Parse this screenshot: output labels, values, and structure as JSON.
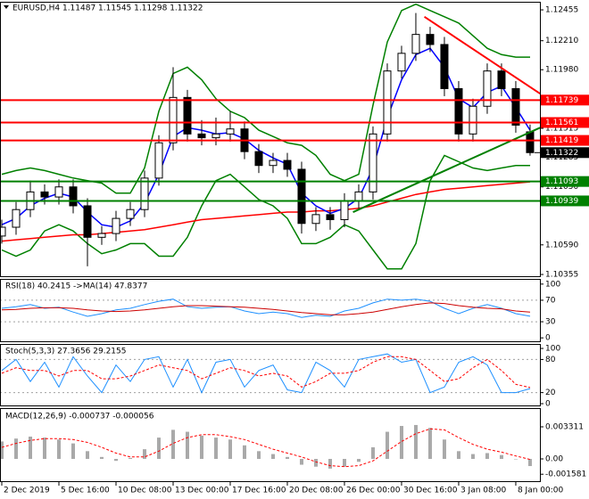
{
  "chart_data": [
    {
      "type": "candlestick",
      "title": "EURUSD,H4  1.11487 1.11545 1.11298 1.11322",
      "open": [
        1.1066,
        1.1073,
        1.1087,
        1.1101,
        1.1097,
        1.1105,
        1.109,
        1.1065,
        1.1068,
        1.108,
        1.1087,
        1.1112,
        1.114,
        1.1176,
        1.1147,
        1.1144,
        1.1147,
        1.1151,
        1.1133,
        1.1122,
        1.1126,
        1.1119,
        1.1076,
        1.1083,
        1.1079,
        1.1094,
        1.1101,
        1.1147,
        1.1197,
        1.1211,
        1.1226,
        1.1218,
        1.1183,
        1.1147,
        1.1169,
        1.1197,
        1.1183,
        1.11487
      ],
      "high": [
        1.1079,
        1.1093,
        1.111,
        1.1107,
        1.1111,
        1.1111,
        1.1096,
        1.1074,
        1.1086,
        1.1093,
        1.1118,
        1.1146,
        1.12,
        1.1182,
        1.1158,
        1.116,
        1.1165,
        1.1157,
        1.1139,
        1.1132,
        1.1132,
        1.1125,
        1.1089,
        1.1089,
        1.11,
        1.1107,
        1.1153,
        1.1203,
        1.1217,
        1.1243,
        1.1232,
        1.1224,
        1.1189,
        1.1175,
        1.1203,
        1.1203,
        1.1189,
        1.11545
      ],
      "low": [
        1.106,
        1.1067,
        1.1081,
        1.1091,
        1.1091,
        1.1084,
        1.1042,
        1.1059,
        1.1062,
        1.1074,
        1.1081,
        1.1106,
        1.1134,
        1.1141,
        1.1138,
        1.1138,
        1.1141,
        1.1127,
        1.1116,
        1.1116,
        1.1113,
        1.1068,
        1.107,
        1.1071,
        1.1073,
        1.1088,
        1.1095,
        1.1141,
        1.1191,
        1.1205,
        1.1212,
        1.1177,
        1.1141,
        1.1141,
        1.1163,
        1.1177,
        1.1148,
        1.11298
      ],
      "close": [
        1.1073,
        1.1087,
        1.1101,
        1.1097,
        1.1105,
        1.109,
        1.1065,
        1.1068,
        1.108,
        1.1087,
        1.1112,
        1.114,
        1.1176,
        1.1147,
        1.1144,
        1.1147,
        1.1151,
        1.1133,
        1.1122,
        1.1126,
        1.1119,
        1.1076,
        1.1083,
        1.1079,
        1.1094,
        1.1101,
        1.1147,
        1.1197,
        1.1211,
        1.1226,
        1.1218,
        1.1183,
        1.1147,
        1.1169,
        1.1197,
        1.1183,
        1.1154,
        1.11322
      ],
      "lines": [
        {
          "color": "#008000",
          "values": [
            1.1115,
            1.1118,
            1.112,
            1.1118,
            1.1115,
            1.1112,
            1.111,
            1.1108,
            1.11,
            1.11,
            1.112,
            1.1165,
            1.1195,
            1.12,
            1.119,
            1.1175,
            1.1165,
            1.116,
            1.115,
            1.1145,
            1.114,
            1.1138,
            1.113,
            1.1115,
            1.111,
            1.1115,
            1.117,
            1.122,
            1.1245,
            1.125,
            1.1245,
            1.124,
            1.1235,
            1.1225,
            1.1215,
            1.121,
            1.1208,
            1.1208
          ]
        },
        {
          "color": "#008000",
          "values": [
            1.1055,
            1.105,
            1.1055,
            1.107,
            1.1075,
            1.107,
            1.106,
            1.1052,
            1.1055,
            1.106,
            1.106,
            1.105,
            1.105,
            1.1065,
            1.109,
            1.111,
            1.1115,
            1.1105,
            1.1095,
            1.109,
            1.108,
            1.106,
            1.106,
            1.1065,
            1.1075,
            1.107,
            1.1055,
            1.104,
            1.104,
            1.106,
            1.111,
            1.113,
            1.1125,
            1.112,
            1.1118,
            1.112,
            1.1122,
            1.1122
          ]
        },
        {
          "color": "#ff0000",
          "values": [
            1.1062,
            1.1063,
            1.1064,
            1.1065,
            1.1066,
            1.1067,
            1.1067,
            1.1068,
            1.1069,
            1.107,
            1.1071,
            1.1073,
            1.1075,
            1.1077,
            1.1079,
            1.108,
            1.1081,
            1.1082,
            1.1083,
            1.1084,
            1.1085,
            1.1085,
            1.1086,
            1.1086,
            1.1087,
            1.1088,
            1.109,
            1.1093,
            1.1096,
            1.1099,
            1.1101,
            1.1103,
            1.1104,
            1.1105,
            1.1106,
            1.1107,
            1.1108,
            1.1109
          ]
        },
        {
          "color": "#0000ff",
          "values": [
            1.1075,
            1.108,
            1.109,
            1.1096,
            1.11,
            1.1097,
            1.1085,
            1.1075,
            1.1073,
            1.1078,
            1.1092,
            1.1115,
            1.1145,
            1.1152,
            1.115,
            1.1147,
            1.1148,
            1.1143,
            1.1134,
            1.1128,
            1.1123,
            1.11,
            1.109,
            1.1084,
            1.1088,
            1.1096,
            1.112,
            1.116,
            1.119,
            1.121,
            1.1215,
            1.12,
            1.1175,
            1.1168,
            1.118,
            1.1185,
            1.1168,
            1.115
          ]
        }
      ],
      "trendlines": [
        {
          "color": "#ff0000",
          "x": [
            29.6,
            37.7
          ],
          "y": [
            1.124,
            1.1179
          ]
        },
        {
          "color": "#008000",
          "x": [
            24.6,
            37.7
          ],
          "y": [
            1.1085,
            1.1152
          ]
        }
      ],
      "levels": [
        {
          "value": 1.11739,
          "color": "#ff0000"
        },
        {
          "value": 1.11561,
          "color": "#ff0000"
        },
        {
          "value": 1.11419,
          "color": "#ff0000"
        },
        {
          "value": 1.11093,
          "color": "#008000"
        },
        {
          "value": 1.10939,
          "color": "#008000"
        }
      ],
      "price_label": 1.11322,
      "xlim": [
        -0.125,
        37.69
      ],
      "xticks": [
        {
          "value": 0,
          "label": "2 Dec 2019"
        },
        {
          "value": 4,
          "label": "5 Dec 16:00"
        },
        {
          "value": 8,
          "label": "10 Dec 08:00"
        },
        {
          "value": 12,
          "label": "13 Dec 00:00"
        },
        {
          "value": 16,
          "label": "17 Dec 16:00"
        },
        {
          "value": 20,
          "label": "20 Dec 08:00"
        },
        {
          "value": 24,
          "label": "26 Dec 00:00"
        },
        {
          "value": 28,
          "label": "30 Dec 16:00"
        },
        {
          "value": 32,
          "label": "3 Jan 08:00"
        },
        {
          "value": 36,
          "label": "8 Jan 00:00"
        }
      ],
      "ylim": [
        1.10334,
        1.12512
      ],
      "yticks": [
        1.12455,
        {
          "value": 1.1221,
          "label": "1.12210"
        },
        {
          "value": 1.1198,
          "label": "1.11980"
        },
        1.11515,
        1.11285,
        {
          "value": 1.1105,
          "label": "1.11050"
        },
        {
          "value": 1.1059,
          "label": "1.10590"
        },
        1.10355
      ]
    },
    {
      "type": "line",
      "title": "RSI(18) 40.2415 ->MA(14) 47.8377",
      "series": [
        {
          "color": "#1e90ff",
          "values": [
            55,
            58,
            62,
            55,
            57,
            48,
            40,
            45,
            52,
            55,
            62,
            68,
            72,
            58,
            55,
            57,
            58,
            50,
            45,
            48,
            45,
            38,
            42,
            40,
            50,
            55,
            65,
            72,
            70,
            72,
            68,
            55,
            45,
            55,
            62,
            55,
            45,
            40.2415
          ]
        },
        {
          "color": "#cc0000",
          "values": [
            52,
            53,
            55,
            56,
            56,
            55,
            52,
            50,
            49,
            50,
            52,
            55,
            58,
            60,
            60,
            59,
            58,
            57,
            55,
            53,
            50,
            47,
            45,
            43,
            43,
            45,
            48,
            53,
            58,
            62,
            65,
            64,
            60,
            57,
            55,
            54,
            50,
            47.8377
          ]
        }
      ],
      "ylim": [
        -8,
        108
      ],
      "yticks": [
        100,
        70,
        30,
        0
      ],
      "grid": true
    },
    {
      "type": "line",
      "title": "Stoch(5,3,3) 27.3656 29.2155",
      "series": [
        {
          "color": "#1e90ff",
          "values": [
            60,
            80,
            40,
            75,
            30,
            85,
            50,
            20,
            70,
            40,
            80,
            85,
            30,
            80,
            20,
            75,
            80,
            30,
            60,
            70,
            25,
            20,
            75,
            60,
            30,
            80,
            85,
            90,
            75,
            80,
            20,
            30,
            75,
            85,
            70,
            20,
            20,
            27.3656
          ]
        },
        {
          "color": "#ff0000",
          "dash": true,
          "values": [
            55,
            65,
            60,
            60,
            50,
            60,
            60,
            45,
            45,
            50,
            60,
            70,
            65,
            60,
            45,
            55,
            65,
            60,
            50,
            55,
            50,
            30,
            40,
            55,
            55,
            60,
            75,
            85,
            85,
            80,
            60,
            40,
            45,
            65,
            80,
            60,
            35,
            29.2155
          ]
        }
      ],
      "ylim": [
        -4.8,
        106.5
      ],
      "yticks": [
        100,
        80,
        20,
        0
      ],
      "grid": true
    },
    {
      "type": "bar",
      "title": "MACD(12,26,9) -0.000737 -0.000056",
      "color": "#a9a9a9",
      "values": [
        0.0018,
        0.0021,
        0.0023,
        0.0022,
        0.002,
        0.0016,
        0.0008,
        0.0002,
        -0.0002,
        0.0001,
        0.001,
        0.0022,
        0.003,
        0.0028,
        0.0024,
        0.0022,
        0.002,
        0.0014,
        0.0008,
        0.0005,
        0.0002,
        -0.0006,
        -0.0008,
        -0.001,
        -0.0008,
        -0.0003,
        0.0012,
        0.0028,
        0.0034,
        0.0035,
        0.0032,
        0.002,
        0.0008,
        0.0005,
        0.0006,
        0.0004,
        0.0,
        -0.000737
      ],
      "series": [
        {
          "color": "#ff0000",
          "dash": true,
          "values": [
            0.0012,
            0.0016,
            0.0019,
            0.0021,
            0.0021,
            0.002,
            0.0017,
            0.0012,
            0.0006,
            0.0002,
            0.0002,
            0.0008,
            0.0016,
            0.0022,
            0.0025,
            0.0025,
            0.0023,
            0.002,
            0.0015,
            0.001,
            0.0006,
            0.0002,
            -0.0003,
            -0.0007,
            -0.0008,
            -0.0007,
            -0.0002,
            0.0008,
            0.0018,
            0.0026,
            0.0031,
            0.003,
            0.0022,
            0.0015,
            0.001,
            0.0007,
            0.0003,
            -5.6e-05
          ]
        }
      ],
      "ylim": [
        -0.00239,
        0.00515
      ],
      "yticks": [
        0.003311,
        {
          "value": 0,
          "label": "0.00"
        },
        -0.001581
      ],
      "grid": false
    }
  ]
}
